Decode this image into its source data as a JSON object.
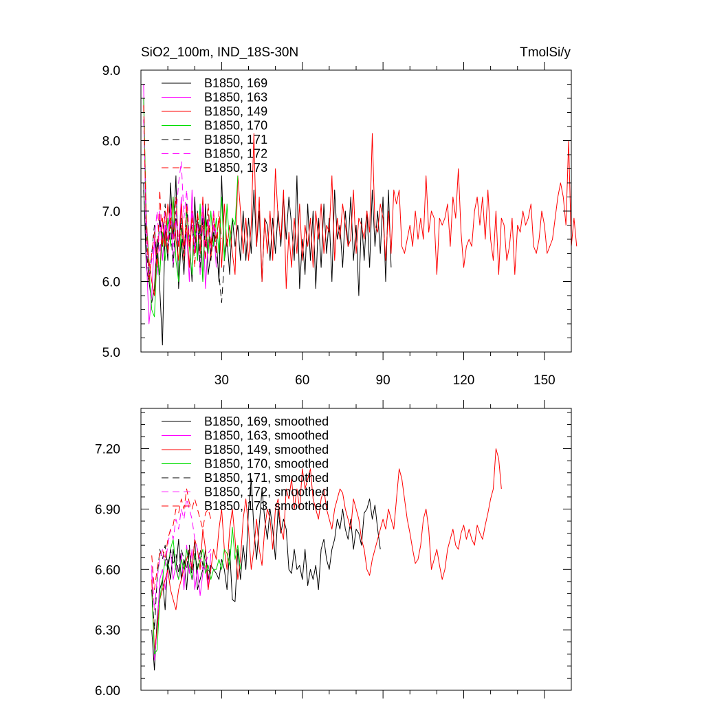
{
  "chart_data": [
    {
      "type": "line",
      "title": "SiO2_100m, IND_18S-30N",
      "units": "TmolSi/y",
      "xlim": [
        0,
        160
      ],
      "ylim": [
        5.0,
        9.0
      ],
      "xticks": [
        "30",
        "60",
        "90",
        "120",
        "150"
      ],
      "yticks": [
        "5.0",
        "6.0",
        "7.0",
        "8.0",
        "9.0"
      ],
      "series": [
        {
          "name": "B1850, 169",
          "color": "#000000",
          "dash": "solid",
          "x_start": 1,
          "values": [
            7.4,
            6.2,
            6.0,
            5.7,
            5.9,
            6.6,
            5.9,
            5.1,
            6.8,
            6.3,
            7.4,
            6.6,
            7.5,
            5.9,
            6.6,
            6.1,
            7.0,
            6.6,
            6.0,
            7.2,
            6.3,
            6.8,
            6.0,
            7.1,
            6.1,
            6.4,
            6.7,
            6.6,
            6.0,
            7.5,
            6.3,
            6.6,
            6.1,
            6.9,
            6.5,
            6.8,
            6.3,
            7.0,
            6.3,
            6.9,
            6.4,
            7.3,
            6.5,
            7.0,
            6.0,
            6.9,
            6.8,
            6.3,
            6.9,
            6.4,
            7.0,
            6.5,
            7.2,
            6.6,
            7.2,
            6.8,
            6.3,
            7.5,
            5.9,
            6.6,
            6.1,
            7.1,
            6.3,
            7.0,
            5.9,
            6.9,
            6.2,
            7.1,
            6.4,
            6.9,
            6.0,
            7.3,
            6.6,
            6.8,
            6.2,
            7.0,
            6.5,
            7.2,
            6.3,
            6.8,
            5.8,
            6.9,
            6.3,
            7.0,
            6.2,
            7.3,
            6.5,
            7.0,
            6.4,
            7.2,
            6.0,
            7.3,
            6.2
          ]
        },
        {
          "name": "B1850, 163",
          "color": "#ff00ff",
          "dash": "solid",
          "x_start": 1,
          "values": [
            8.8,
            6.4,
            5.4,
            5.8,
            6.6,
            6.1,
            7.0,
            6.3,
            6.8,
            6.4,
            7.1,
            6.2,
            6.9,
            6.5,
            7.2,
            6.3,
            6.7,
            6.0,
            7.3,
            6.4,
            6.9,
            6.1,
            7.0,
            5.9,
            6.6,
            6.4,
            6.8,
            6.2
          ]
        },
        {
          "name": "B1850, 149",
          "color": "#ff0000",
          "dash": "solid",
          "x_start": 1,
          "values": [
            8.6,
            6.9,
            6.3,
            6.0,
            5.8,
            6.4,
            6.1,
            6.9,
            6.5,
            7.1,
            6.8,
            7.2,
            6.6,
            6.3,
            7.1,
            6.5,
            6.8,
            6.2,
            7.0,
            6.6,
            6.9,
            6.4,
            7.2,
            6.5,
            6.8,
            6.3,
            7.0,
            6.6,
            6.9,
            6.2,
            7.1,
            6.5,
            6.8,
            6.4,
            6.1,
            7.5,
            7.0,
            6.4,
            6.9,
            6.3,
            6.8,
            8.1,
            6.5,
            7.2,
            6.0,
            6.9,
            6.4,
            7.0,
            6.3,
            7.6,
            6.9,
            6.6,
            7.3,
            5.9,
            6.7,
            6.2,
            6.9,
            6.4,
            7.1,
            6.3,
            6.8,
            6.5,
            6.9,
            6.2,
            7.0,
            6.6,
            7.1,
            6.4,
            6.8,
            6.7,
            7.5,
            6.3,
            6.9,
            6.6,
            7.1,
            6.8,
            6.5,
            6.6,
            7.3,
            6.4,
            6.9,
            6.8,
            6.6,
            7.0,
            6.7,
            8.1,
            6.8,
            6.7,
            7.1,
            6.9,
            6.3,
            7.0,
            6.4,
            7.3,
            7.1,
            7.3,
            6.5,
            6.4,
            6.6,
            6.8,
            6.5,
            7.0,
            6.6,
            6.9,
            6.6,
            7.5,
            6.7,
            7.0,
            6.9,
            6.1,
            6.9,
            6.8,
            6.9,
            7.1,
            6.5,
            7.2,
            6.9,
            7.6,
            6.7,
            6.2,
            6.5,
            6.6,
            6.5,
            7.0,
            7.2,
            6.8,
            7.2,
            6.6,
            7.3,
            6.6,
            6.3,
            7.0,
            6.1,
            6.9,
            6.8,
            6.3,
            6.5,
            6.9,
            6.1,
            6.8,
            6.7,
            7.0,
            6.8,
            6.9,
            7.1,
            6.5,
            6.4,
            6.6,
            7.0,
            6.8,
            6.4,
            6.5,
            6.6,
            6.9,
            7.2,
            7.4,
            7.2,
            6.8,
            8.0,
            6.5,
            6.9,
            6.5
          ]
        },
        {
          "name": "B1850, 170",
          "color": "#00dd00",
          "dash": "solid",
          "x_start": 1,
          "values": [
            8.6,
            6.9,
            6.2,
            5.6,
            5.5,
            6.4,
            6.1,
            6.7,
            6.3,
            6.9,
            6.5,
            7.2,
            6.3,
            6.0,
            6.8,
            6.3,
            7.0,
            6.5,
            6.1,
            6.8,
            6.3,
            7.1,
            6.0,
            6.9,
            6.4,
            7.0,
            6.5,
            6.9,
            6.4,
            7.2,
            6.3,
            7.1,
            6.5,
            6.9,
            6.8,
            7.5
          ]
        },
        {
          "name": "B1850, 171",
          "color": "#000000",
          "dash": "dash",
          "x_start": 1,
          "values": [
            7.3,
            6.5,
            6.0,
            6.4,
            6.8,
            6.2,
            6.9,
            6.5,
            7.1,
            6.4,
            6.8,
            6.2,
            7.0,
            6.5,
            6.9,
            6.3,
            7.1,
            6.6,
            6.8,
            6.4,
            7.0,
            6.2,
            6.9,
            6.5,
            7.1,
            6.3,
            6.7,
            6.4,
            6.1,
            5.7,
            6.3
          ]
        },
        {
          "name": "B1850, 172",
          "color": "#ff00ff",
          "dash": "dash",
          "x_start": 1,
          "values": [
            8.3,
            6.9,
            6.1,
            6.3,
            6.6,
            7.0,
            6.4,
            6.8,
            7.0,
            6.6,
            7.1,
            6.5,
            6.9,
            7.4,
            7.7,
            6.9,
            7.3,
            6.6,
            7.0,
            6.4,
            6.8,
            6.6,
            7.1,
            6.3,
            6.9,
            6.5,
            7.0,
            6.6
          ]
        },
        {
          "name": "B1850, 173",
          "color": "#ff0000",
          "dash": "dash",
          "x_start": 1,
          "values": [
            8.5,
            6.8,
            6.0,
            6.4,
            6.7,
            6.2,
            7.3,
            6.5,
            7.0,
            6.4,
            6.9,
            6.6,
            7.2,
            6.5,
            6.8,
            6.3,
            7.1,
            6.5,
            6.9,
            6.2,
            7.0,
            6.6,
            6.8,
            6.3,
            7.1,
            6.5,
            6.9,
            6.4,
            7.0,
            6.6
          ]
        }
      ]
    },
    {
      "type": "line",
      "xlim": [
        0,
        160
      ],
      "ylim": [
        6.0,
        7.4
      ],
      "yticks": [
        "6.00",
        "6.30",
        "6.60",
        "6.90",
        "7.20"
      ],
      "series": [
        {
          "name": "B1850, 169, smoothed",
          "color": "#000000",
          "dash": "solid",
          "x_start": 4,
          "values": [
            6.3,
            6.1,
            6.35,
            6.5,
            6.55,
            6.4,
            6.65,
            6.55,
            6.7,
            6.6,
            6.75,
            6.55,
            6.65,
            6.5,
            6.7,
            6.6,
            6.75,
            6.5,
            6.55,
            6.6,
            6.7,
            6.55,
            6.62,
            6.6,
            6.58,
            6.55,
            6.65,
            6.6,
            6.5,
            6.7,
            6.45,
            6.44,
            6.7,
            6.55,
            6.72,
            6.6,
            6.9,
            7.05,
            6.8,
            6.65,
            6.82,
            7.0,
            6.85,
            6.75,
            6.9,
            6.8,
            6.65,
            6.9,
            6.78,
            6.85,
            6.8,
            6.6,
            6.58,
            6.7,
            6.6,
            6.62,
            6.55,
            6.7,
            6.52,
            6.6,
            6.55,
            6.62,
            6.5,
            6.7,
            6.75,
            6.65,
            6.6,
            6.7,
            6.75,
            6.85,
            6.8,
            6.9,
            6.8,
            6.75,
            6.85,
            6.7,
            6.8,
            6.78,
            6.72,
            6.88,
            6.9,
            6.95,
            6.85,
            6.92,
            6.8,
            6.7
          ]
        },
        {
          "name": "B1850, 163, smoothed",
          "color": "#ff00ff",
          "dash": "solid",
          "x_start": 4,
          "values": [
            6.6,
            6.15,
            6.3,
            6.55,
            6.6,
            6.5,
            6.6,
            6.7,
            6.55,
            6.62,
            6.55,
            6.68,
            6.5,
            6.72,
            6.58,
            6.7,
            6.5,
            6.6,
            6.47,
            6.58,
            6.62,
            6.5,
            6.68
          ]
        },
        {
          "name": "B1850, 149, smoothed",
          "color": "#ff0000",
          "dash": "solid",
          "x_start": 4,
          "values": [
            6.55,
            6.2,
            6.3,
            6.45,
            6.5,
            6.55,
            6.6,
            6.5,
            6.45,
            6.4,
            6.5,
            6.55,
            6.6,
            6.65,
            6.7,
            6.6,
            6.75,
            6.7,
            6.6,
            6.8,
            6.7,
            6.5,
            6.6,
            6.7,
            6.65,
            6.8,
            6.9,
            6.7,
            6.6,
            6.8,
            6.9,
            6.75,
            6.55,
            6.65,
            6.85,
            6.95,
            6.8,
            6.6,
            6.7,
            6.85,
            6.7,
            6.62,
            6.8,
            6.9,
            6.85,
            6.7,
            6.9,
            6.95,
            6.8,
            6.75,
            7.0,
            6.95,
            7.05,
            6.9,
            7.0,
            6.9,
            7.1,
            7.0,
            7.05,
            7.1,
            6.95,
            6.9,
            6.85,
            6.95,
            7.0,
            6.9,
            6.85,
            6.8,
            6.9,
            6.95,
            7.0,
            6.98,
            6.9,
            6.85,
            6.8,
            6.95,
            6.9,
            6.85,
            6.75,
            6.7,
            6.6,
            6.57,
            6.65,
            6.7,
            6.75,
            6.8,
            6.85,
            6.8,
            6.9,
            6.85,
            6.8,
            6.95,
            7.1,
            7.05,
            6.95,
            6.85,
            6.78,
            6.7,
            6.63,
            6.65,
            6.72,
            6.85,
            6.9,
            6.8,
            6.6,
            6.65,
            6.7,
            6.62,
            6.55,
            6.6,
            6.7,
            6.75,
            6.8,
            6.72,
            6.7,
            6.78,
            6.82,
            6.75,
            6.8,
            6.75,
            6.72,
            6.82,
            6.78,
            6.75,
            6.82,
            6.88,
            6.95,
            7.0,
            7.2,
            7.15,
            7.0
          ]
        },
        {
          "name": "B1850, 170, smoothed",
          "color": "#00dd00",
          "dash": "solid",
          "x_start": 4,
          "values": [
            6.5,
            6.18,
            6.2,
            6.45,
            6.55,
            6.65,
            6.6,
            6.7,
            6.75,
            6.6,
            6.55,
            6.65,
            6.6,
            6.7,
            6.62,
            6.55,
            6.68,
            6.6,
            6.65,
            6.7,
            6.58,
            6.62,
            6.55,
            6.6,
            6.6,
            6.65,
            6.6,
            6.7,
            6.68,
            6.62,
            6.81,
            6.65,
            6.72,
            6.6
          ]
        },
        {
          "name": "B1850, 171, smoothed",
          "color": "#000000",
          "dash": "dash",
          "x_start": 4,
          "values": [
            6.5,
            6.3,
            6.55,
            6.7,
            6.65,
            6.72,
            6.6,
            6.7,
            6.62,
            6.68,
            6.58,
            6.7,
            6.65,
            6.6,
            6.72,
            6.55,
            6.68,
            6.6,
            6.7,
            6.62,
            6.65,
            6.6,
            6.58
          ]
        },
        {
          "name": "B1850, 172, smoothed",
          "color": "#ff00ff",
          "dash": "dash",
          "x_start": 4,
          "values": [
            6.62,
            6.4,
            6.55,
            6.65,
            6.7,
            6.62,
            6.72,
            6.8,
            6.75,
            6.85,
            6.8,
            6.9,
            6.85,
            6.95,
            6.9,
            6.85,
            6.75,
            6.7,
            6.65,
            6.6,
            6.62,
            6.68,
            6.7
          ]
        },
        {
          "name": "B1850, 173, smoothed",
          "color": "#ff0000",
          "dash": "dash",
          "x_start": 4,
          "values": [
            6.67,
            6.5,
            6.6,
            6.68,
            6.7,
            6.65,
            6.75,
            6.8,
            6.82,
            6.9,
            6.88,
            6.95,
            6.9,
            7.0,
            6.93,
            6.9,
            6.95,
            6.9,
            6.85,
            6.8,
            6.88,
            6.9,
            6.85
          ]
        }
      ]
    }
  ]
}
